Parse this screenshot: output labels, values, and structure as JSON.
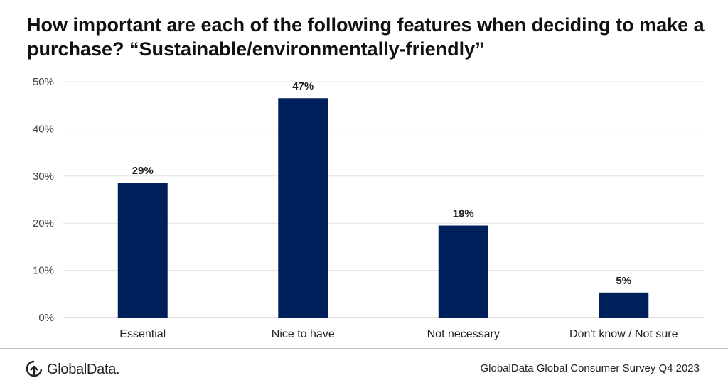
{
  "title": "How important are each of the following features when deciding to make a purchase? “Sustainable/environmentally-friendly”",
  "chart_data": {
    "type": "bar",
    "categories": [
      "Essential",
      "Nice to have",
      "Not necessary",
      "Don't know / Not sure"
    ],
    "values": [
      28.6,
      46.5,
      19.5,
      5.3
    ],
    "data_labels": [
      "29%",
      "47%",
      "19%",
      "5%"
    ],
    "y_ticks": [
      "0%",
      "10%",
      "20%",
      "30%",
      "40%",
      "50%"
    ],
    "ylim": [
      0,
      50
    ],
    "grid": true,
    "bar_color": "#00205b"
  },
  "footer": {
    "logo_text": "GlobalData.",
    "source": "GlobalData Global Consumer Survey Q4 2023"
  }
}
